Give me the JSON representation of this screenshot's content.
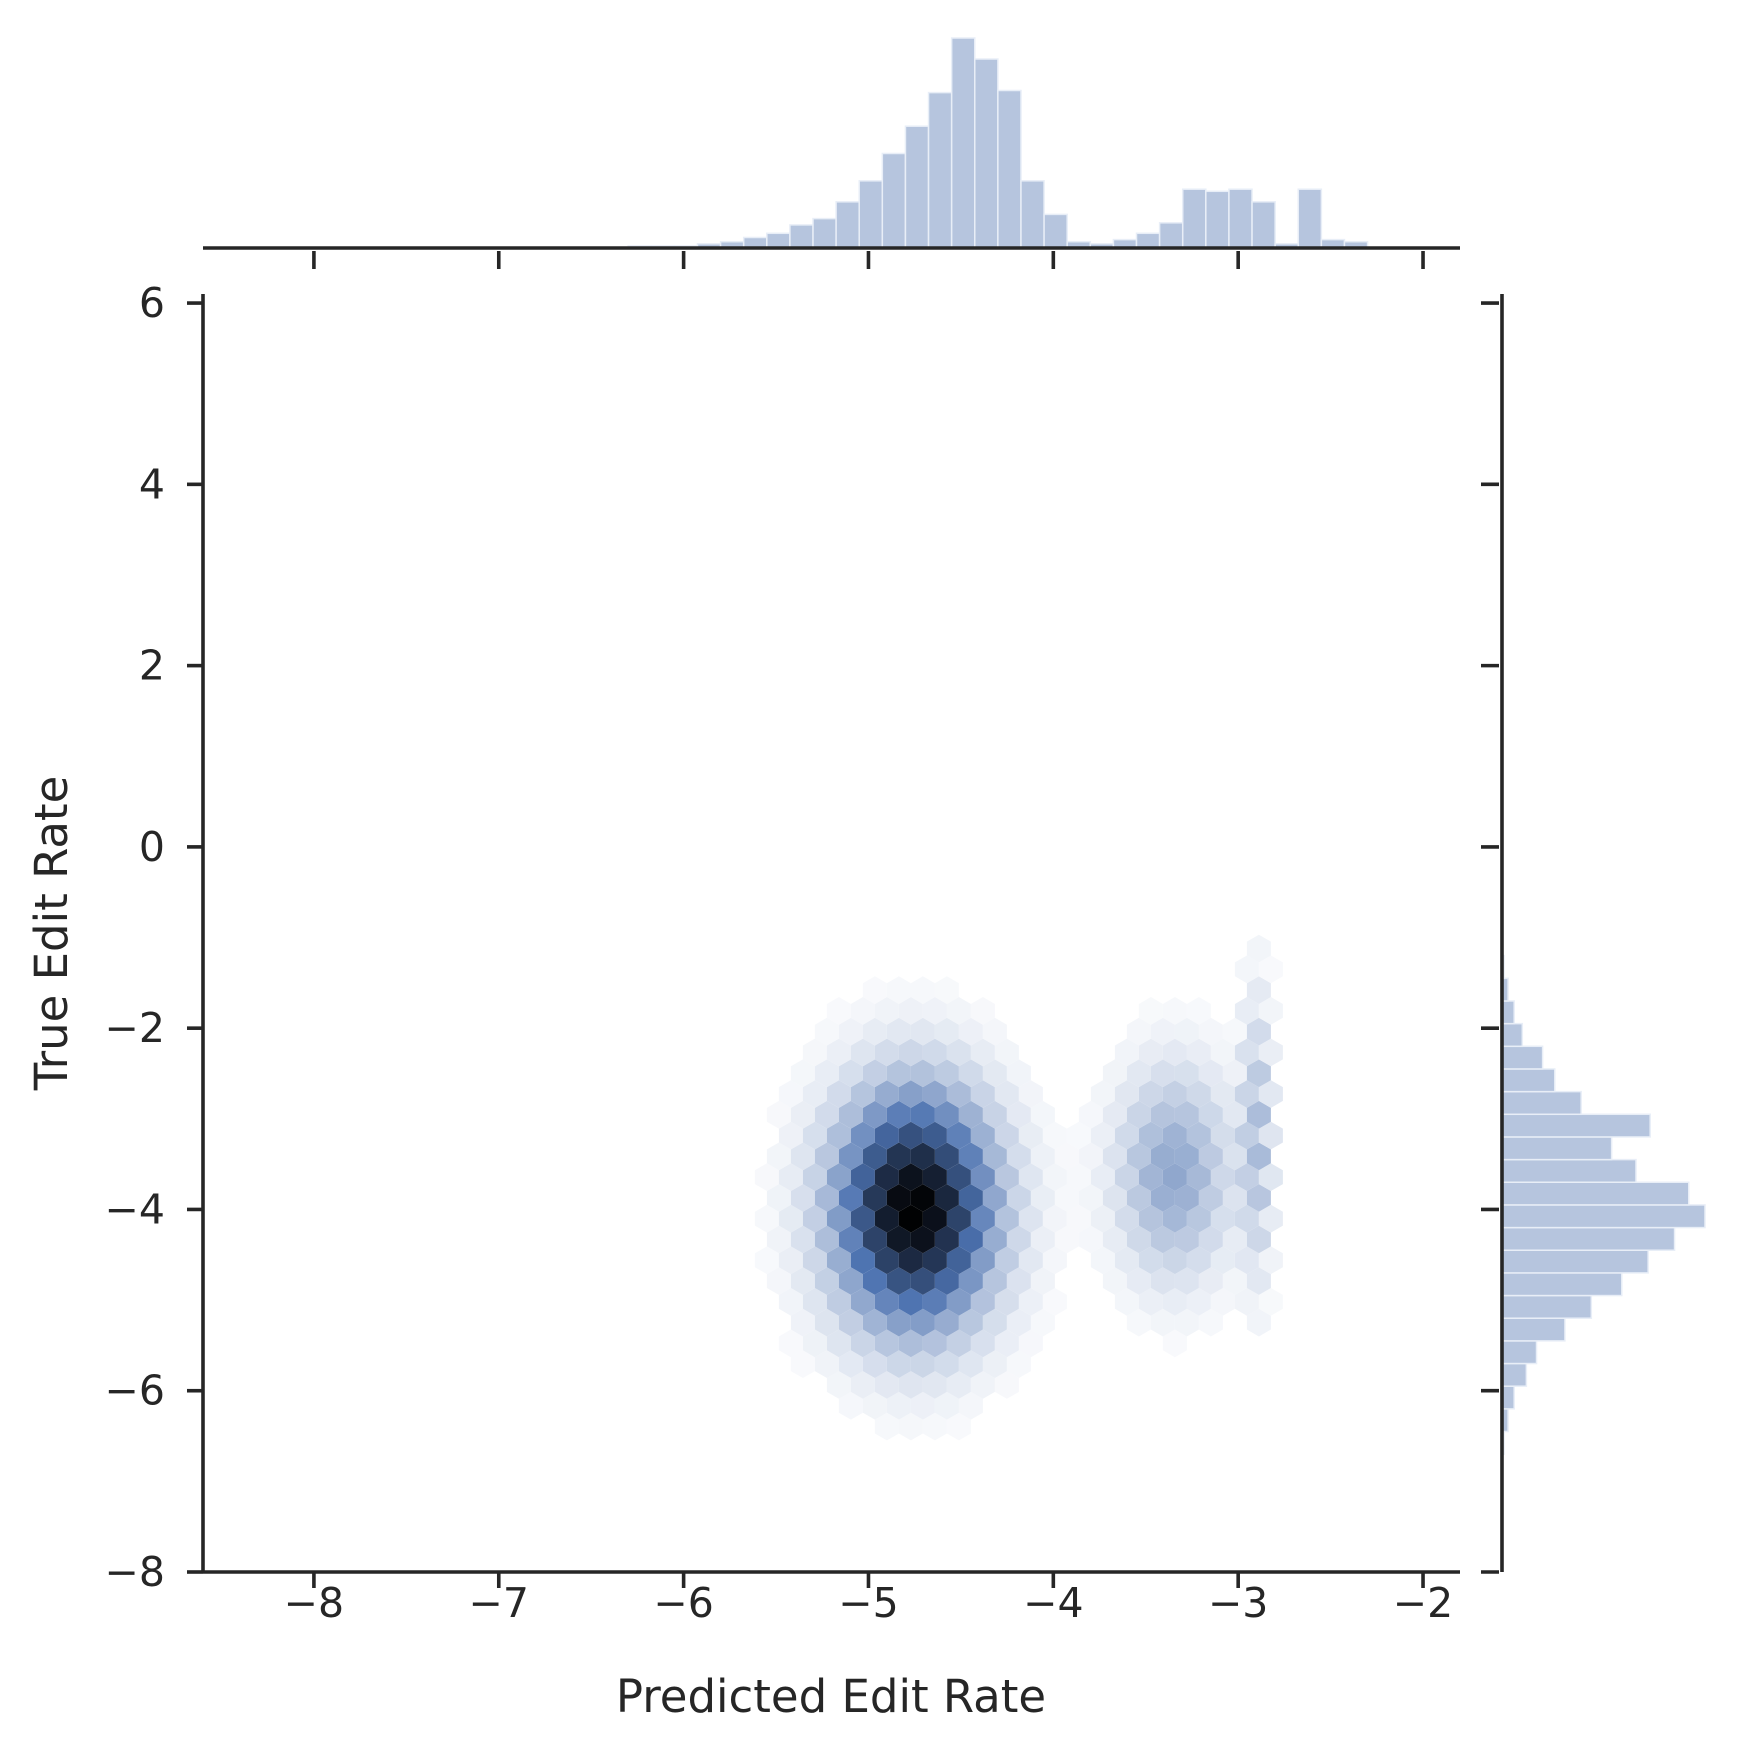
{
  "chart_data": {
    "type": "hexbin",
    "xlabel": "Predicted Edit Rate",
    "ylabel": "True Edit Rate",
    "xlim": [
      -8.6,
      -1.8
    ],
    "ylim": [
      -8,
      6.1
    ],
    "xticks": [
      -8,
      -7,
      -6,
      -5,
      -4,
      -3,
      -2
    ],
    "yticks": [
      -8,
      -6,
      -4,
      -2,
      0,
      2,
      4,
      6
    ],
    "grid": false,
    "legend": "none",
    "colors": {
      "hex_dark": "#000000",
      "hex_mid": "#4c72b0",
      "hist": "#b6c5de",
      "hist_edge": "#e8eef7",
      "axis": "#262626"
    },
    "hexbin": {
      "gridsize_x": 55,
      "clusters": [
        {
          "cx": -4.75,
          "cy": -4.0,
          "sx": 0.28,
          "sy": 0.85,
          "weight": 1.0
        },
        {
          "cx": -3.35,
          "cy": -3.6,
          "sx": 0.2,
          "sy": 0.75,
          "weight": 0.3
        },
        {
          "cx": -2.9,
          "cy": -3.2,
          "sx": 0.05,
          "sy": 1.0,
          "weight": 0.22
        }
      ]
    },
    "marginal_x": {
      "bin_edges_start": -6.3,
      "bin_width": 0.125,
      "counts": [
        1,
        1,
        1,
        2,
        3,
        5,
        7,
        11,
        14,
        22,
        32,
        45,
        58,
        74,
        100,
        90,
        75,
        32,
        16,
        3,
        2,
        4,
        7,
        12,
        28,
        27,
        28,
        22,
        2,
        28,
        4,
        3
      ]
    },
    "marginal_y": {
      "bin_edges_start": -6.7,
      "bin_width": 0.25,
      "counts": [
        1,
        3,
        6,
        12,
        17,
        31,
        44,
        59,
        72,
        85,
        100,
        92,
        66,
        54,
        73,
        39,
        26,
        20,
        10,
        6,
        3,
        1
      ]
    }
  }
}
